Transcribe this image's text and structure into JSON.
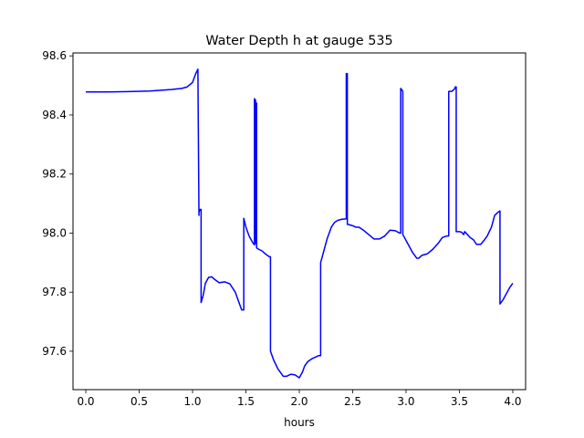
{
  "chart_data": {
    "type": "line",
    "title": "Water Depth h at gauge 535",
    "xlabel": "hours",
    "ylabel": "",
    "xlim": [
      -0.12,
      4.12
    ],
    "ylim": [
      97.47,
      98.61
    ],
    "xticks": [
      0.0,
      0.5,
      1.0,
      1.5,
      2.0,
      2.5,
      3.0,
      3.5,
      4.0
    ],
    "xtick_labels": [
      "0.0",
      "0.5",
      "1.0",
      "1.5",
      "2.0",
      "2.5",
      "3.0",
      "3.5",
      "4.0"
    ],
    "yticks": [
      97.6,
      97.8,
      98.0,
      98.2,
      98.4,
      98.6
    ],
    "ytick_labels": [
      "97.6",
      "97.8",
      "98.0",
      "98.2",
      "98.4",
      "98.6"
    ],
    "grid": false,
    "series": [
      {
        "color": "#0000ff",
        "x": [
          0.0,
          0.2,
          0.4,
          0.6,
          0.8,
          0.9,
          0.95,
          1.0,
          1.03,
          1.05,
          1.06,
          1.06,
          1.07,
          1.08,
          1.08,
          1.1,
          1.12,
          1.15,
          1.18,
          1.2,
          1.25,
          1.3,
          1.35,
          1.4,
          1.43,
          1.46,
          1.48,
          1.48,
          1.5,
          1.53,
          1.56,
          1.58,
          1.58,
          1.59,
          1.59,
          1.6,
          1.6,
          1.62,
          1.65,
          1.68,
          1.72,
          1.73,
          1.73,
          1.76,
          1.8,
          1.83,
          1.85,
          1.88,
          1.92,
          1.96,
          2.0,
          2.03,
          2.05,
          2.08,
          2.12,
          2.15,
          2.18,
          2.2,
          2.2,
          2.23,
          2.26,
          2.3,
          2.33,
          2.36,
          2.4,
          2.44,
          2.44,
          2.45,
          2.45,
          2.5,
          2.53,
          2.56,
          2.6,
          2.65,
          2.7,
          2.75,
          2.8,
          2.85,
          2.9,
          2.94,
          2.95,
          2.95,
          2.97,
          2.97,
          3.0,
          3.03,
          3.06,
          3.1,
          3.12,
          3.15,
          3.2,
          3.25,
          3.3,
          3.34,
          3.38,
          3.4,
          3.4,
          3.43,
          3.46,
          3.46,
          3.47,
          3.47,
          3.5,
          3.52,
          3.54,
          3.55,
          3.6,
          3.63,
          3.66,
          3.7,
          3.73,
          3.76,
          3.8,
          3.83,
          3.86,
          3.88,
          3.88,
          3.91,
          3.94,
          3.97,
          4.0
        ],
        "y": [
          98.478,
          98.478,
          98.479,
          98.481,
          98.486,
          98.49,
          98.495,
          98.51,
          98.54,
          98.555,
          98.06,
          98.07,
          98.08,
          98.08,
          97.765,
          97.79,
          97.83,
          97.85,
          97.852,
          97.845,
          97.832,
          97.835,
          97.828,
          97.8,
          97.77,
          97.74,
          97.74,
          98.05,
          98.02,
          97.99,
          97.97,
          97.96,
          98.455,
          98.45,
          97.965,
          98.44,
          97.95,
          97.945,
          97.94,
          97.93,
          97.92,
          97.92,
          97.6,
          97.57,
          97.54,
          97.525,
          97.515,
          97.515,
          97.522,
          97.52,
          97.51,
          97.53,
          97.55,
          97.565,
          97.575,
          97.58,
          97.585,
          97.585,
          97.9,
          97.94,
          97.98,
          98.02,
          98.036,
          98.043,
          98.047,
          98.048,
          98.54,
          98.54,
          98.03,
          98.025,
          98.02,
          98.02,
          98.01,
          97.995,
          97.98,
          97.98,
          97.99,
          98.01,
          98.008,
          98.0,
          98.0,
          98.49,
          98.48,
          97.995,
          97.975,
          97.955,
          97.935,
          97.915,
          97.915,
          97.925,
          97.93,
          97.945,
          97.965,
          97.985,
          97.99,
          97.99,
          98.48,
          98.48,
          98.49,
          98.495,
          98.495,
          98.005,
          98.005,
          98.003,
          97.995,
          98.005,
          97.985,
          97.978,
          97.962,
          97.962,
          97.975,
          97.99,
          98.02,
          98.06,
          98.07,
          98.075,
          97.76,
          97.775,
          97.795,
          97.815,
          97.83
        ]
      }
    ]
  }
}
